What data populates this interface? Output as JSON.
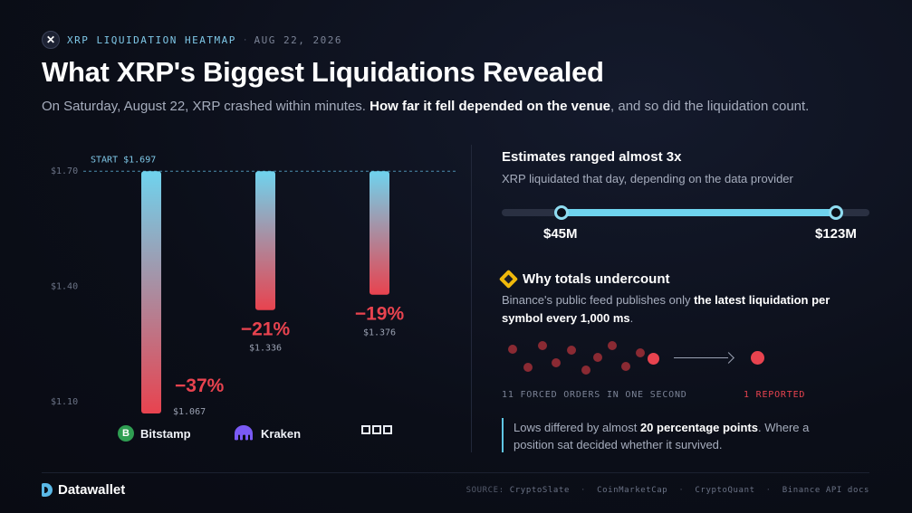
{
  "header": {
    "icon": "x-logo-icon",
    "kicker": "XRP LIQUIDATION HEATMAP",
    "date": "AUG 22, 2026",
    "title": "What XRP's Biggest Liquidations Revealed",
    "subtitle_start": "On Saturday, August 22, XRP crashed within minutes. ",
    "subtitle_bold": "How far it fell depended on the venue",
    "subtitle_end": ", and so did the liquidation count."
  },
  "chart_data": {
    "type": "bar",
    "title": "",
    "start_label": "START $1.697",
    "start_value": 1.697,
    "ylim": [
      1.1,
      1.7
    ],
    "y_ticks": [
      {
        "value": 1.7,
        "label": "$1.70"
      },
      {
        "value": 1.4,
        "label": "$1.40"
      },
      {
        "value": 1.1,
        "label": "$1.10"
      }
    ],
    "categories": [
      "Bitstamp",
      "Kraken",
      "OKX"
    ],
    "series": [
      {
        "values_low": [
          1.067,
          1.336,
          1.376
        ],
        "low_labels": [
          "$1.067",
          "$1.336",
          "$1.376"
        ],
        "drop_labels": [
          "−37%",
          "−21%",
          "−19%"
        ]
      }
    ],
    "colors": {
      "top": "#6fd3ee",
      "bottom": "#e8434f"
    },
    "grid": false
  },
  "venues": [
    {
      "name": "Bitstamp",
      "icon": "bitstamp-b-icon",
      "letter": "B"
    },
    {
      "name": "Kraken",
      "icon": "kraken-icon"
    },
    {
      "name": "",
      "icon": "okx-logo-icon"
    }
  ],
  "estimates": {
    "title": "Estimates ranged almost 3x",
    "subtitle": "XRP liquidated that day, depending on the data provider",
    "low_label": "$45M",
    "high_label": "$123M",
    "low_value": 45,
    "high_value": 123
  },
  "why": {
    "icon": "binance-icon",
    "title": "Why totals undercount",
    "body_start": "Binance's public feed publishes only ",
    "body_bold": "the latest liquidation per symbol every 1,000 ms",
    "body_end": "."
  },
  "orders": {
    "forced_label": "11 FORCED ORDERS IN ONE SECOND",
    "reported_label": "1 REPORTED",
    "forced_count": 11,
    "reported_count": 1
  },
  "note": {
    "start": "Lows differed by almost ",
    "bold": "20 percentage points",
    "end": ". Where a position sat decided whether it survived."
  },
  "footer": {
    "brand": "Datawallet",
    "source_label": "SOURCE:",
    "sources": [
      "CryptoSlate",
      "CoinMarketCap",
      "CryptoQuant",
      "Binance API docs"
    ]
  }
}
